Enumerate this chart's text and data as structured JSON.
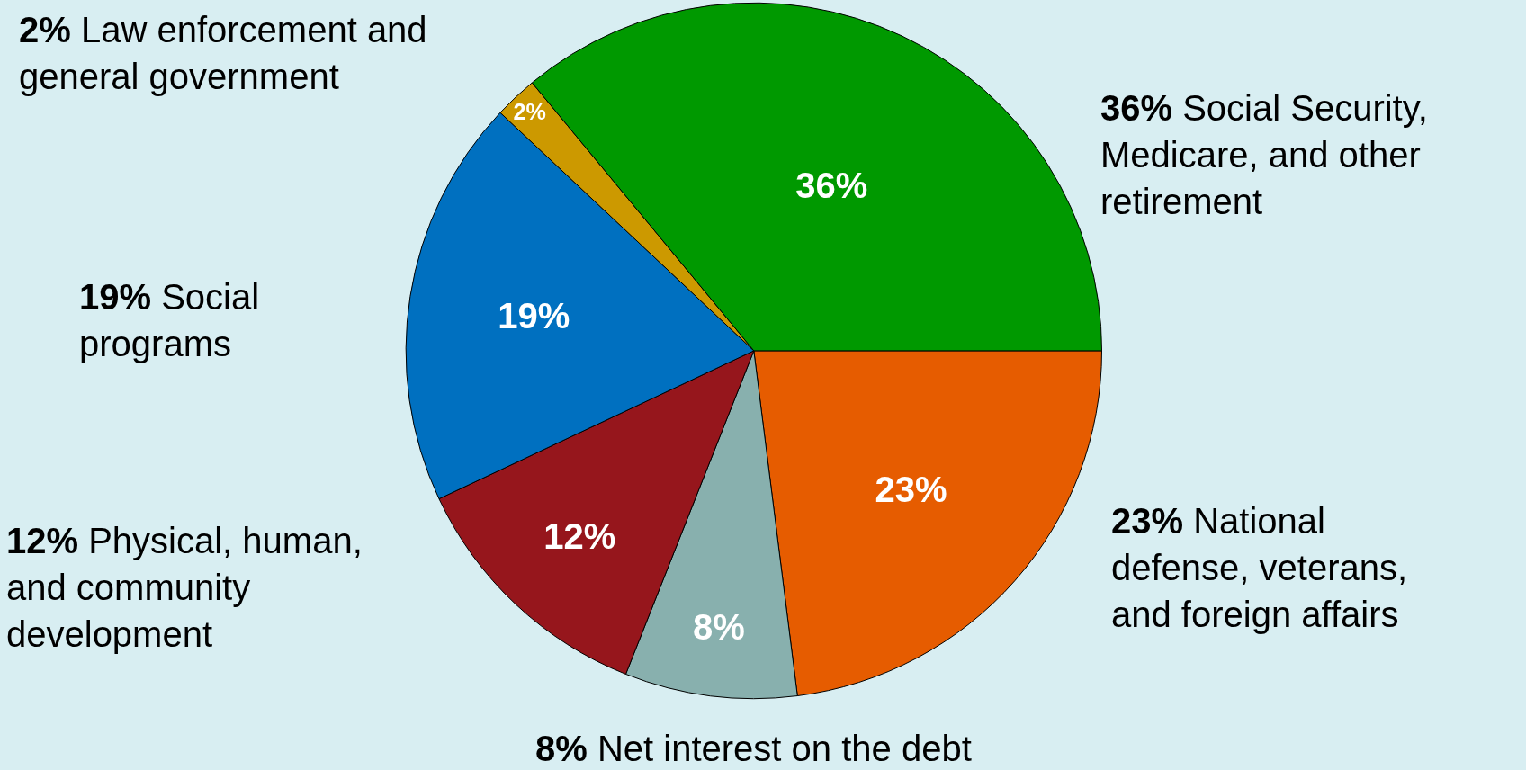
{
  "chart_data": {
    "type": "pie",
    "categories": [
      "National defense, veterans, and foreign affairs",
      "Net interest on the debt",
      "Physical, human, and community development",
      "Social programs",
      "Law enforcement and general government",
      "Social Security, Medicare, and other retirement"
    ],
    "values": [
      23,
      8,
      12,
      19,
      2,
      36
    ],
    "value_labels": [
      "23%",
      "8%",
      "12%",
      "19%",
      "2%",
      "36%"
    ],
    "colors": [
      "#e65c00",
      "#88b0ae",
      "#96161c",
      "#0070c0",
      "#cc9900",
      "#009900"
    ],
    "legend": false
  }
}
